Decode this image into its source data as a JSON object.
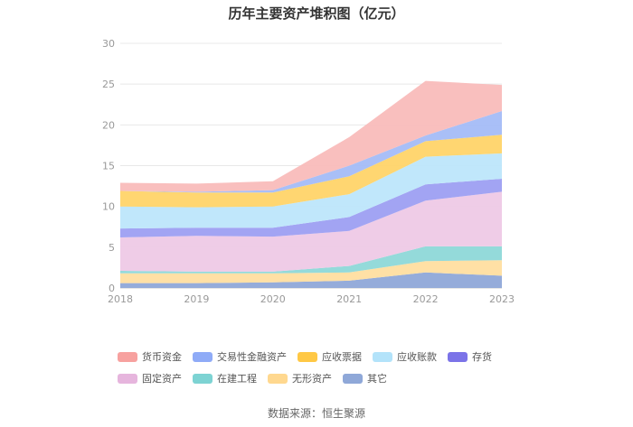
{
  "chart_data": {
    "type": "area",
    "stacked": true,
    "title": "历年主要资产堆积图（亿元）",
    "x": [
      "2018",
      "2019",
      "2020",
      "2021",
      "2022",
      "2023"
    ],
    "ylim": [
      0,
      30
    ],
    "yticks": [
      0,
      5,
      10,
      15,
      20,
      25,
      30
    ],
    "grid": true,
    "legend_position": "bottom",
    "series": [
      {
        "name": "其它",
        "color": "#8fa8d8",
        "values": [
          0.6,
          0.6,
          0.7,
          0.9,
          1.9,
          1.5
        ]
      },
      {
        "name": "无形资产",
        "color": "#ffdea0",
        "values": [
          1.2,
          1.2,
          1.1,
          1.0,
          1.4,
          1.9
        ]
      },
      {
        "name": "在建工程",
        "color": "#8ed8d8",
        "values": [
          0.3,
          0.2,
          0.2,
          0.8,
          1.8,
          1.7
        ]
      },
      {
        "name": "固定资产",
        "color": "#eec9e6",
        "values": [
          4.1,
          4.4,
          4.3,
          4.3,
          5.6,
          6.7
        ]
      },
      {
        "name": "存货",
        "color": "#9d9ff2",
        "values": [
          1.1,
          1.0,
          1.1,
          1.7,
          2.0,
          1.6
        ]
      },
      {
        "name": "应收账款",
        "color": "#bde6fb",
        "values": [
          2.7,
          2.5,
          2.6,
          2.8,
          3.4,
          3.1
        ]
      },
      {
        "name": "应收票据",
        "color": "#ffd469",
        "values": [
          1.9,
          1.8,
          1.7,
          2.2,
          1.9,
          2.3
        ]
      },
      {
        "name": "交易性金融资产",
        "color": "#a4bcf7",
        "values": [
          0.0,
          0.1,
          0.3,
          1.3,
          0.7,
          2.9
        ]
      },
      {
        "name": "货币资金",
        "color": "#f9bcbb",
        "values": [
          1.0,
          1.0,
          1.1,
          3.5,
          6.7,
          3.2
        ]
      }
    ],
    "legend_order": [
      "货币资金",
      "交易性金融资产",
      "应收票据",
      "应收账款",
      "存货",
      "固定资产",
      "在建工程",
      "无形资产",
      "其它"
    ],
    "legend_colors": {
      "货币资金": "#f7a19f",
      "交易性金融资产": "#8fabf7",
      "应收票据": "#ffc845",
      "应收账款": "#b3e3fa",
      "存货": "#7b73e8",
      "固定资产": "#e6b5dd",
      "在建工程": "#7dd3d3",
      "无形资产": "#ffd88f",
      "其它": "#8fa8d8"
    }
  },
  "source": "数据来源：恒生聚源"
}
